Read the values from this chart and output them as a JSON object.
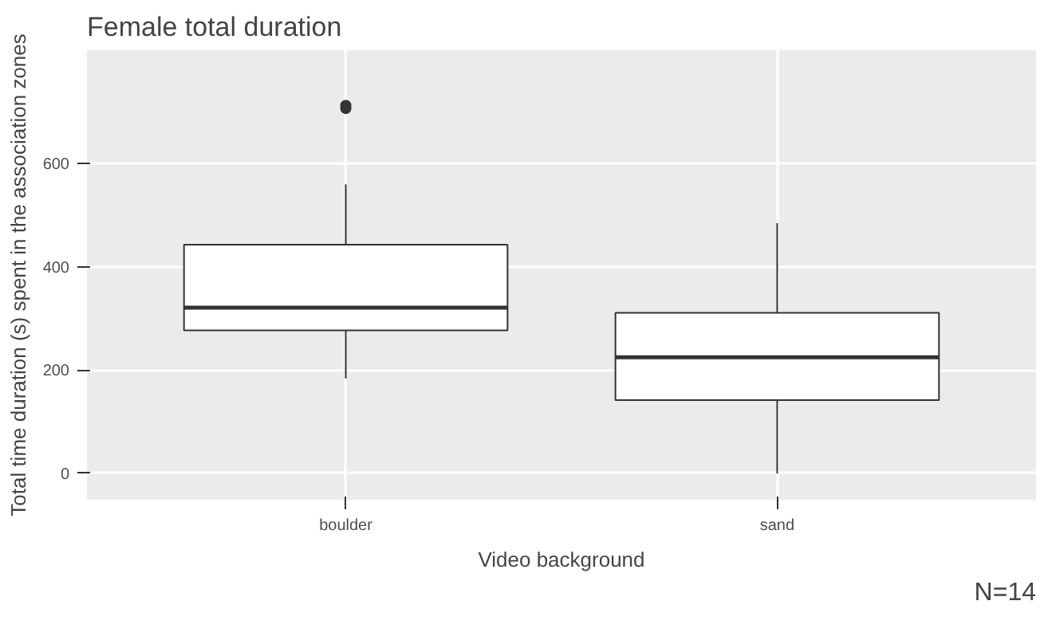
{
  "chart_data": {
    "type": "box",
    "title": "Female total duration",
    "xlabel": "Video background",
    "ylabel": "Total time duration (s) spent in the association zones",
    "categories": [
      "boulder",
      "sand"
    ],
    "boxes": [
      {
        "low": 184,
        "q1": 277,
        "median": 321,
        "q3": 443,
        "high": 560,
        "outliers": [
          707,
          713
        ]
      },
      {
        "low": 0,
        "q1": 142,
        "median": 225,
        "q3": 311,
        "high": 485
      }
    ],
    "color": "#ffffff",
    "ylim": [
      -51,
      820
    ],
    "yticks": [
      0,
      200,
      400,
      600
    ],
    "grid": true,
    "annotations": [
      "N=14"
    ]
  }
}
